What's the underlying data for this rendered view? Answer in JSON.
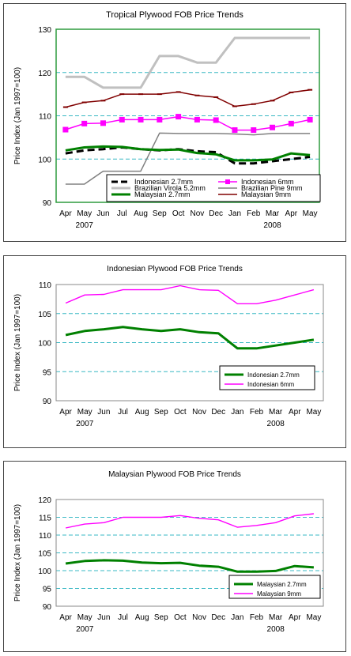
{
  "chart_data": [
    {
      "type": "line",
      "title": "Tropical Plywood FOB Price Trends",
      "ylabel": "Price Index (Jan 1997=100)",
      "categories": [
        "Apr",
        "May",
        "Jun",
        "Jul",
        "Aug",
        "Sep",
        "Oct",
        "Nov",
        "Dec",
        "Jan",
        "Feb",
        "Mar",
        "Apr",
        "May"
      ],
      "year_labels": [
        {
          "label": "2007",
          "index": 1
        },
        {
          "label": "2008",
          "index": 11
        }
      ],
      "ylim": [
        90,
        130
      ],
      "yticks": [
        90,
        100,
        110,
        120,
        130
      ],
      "grid": true,
      "legend_position": "bottom-inside",
      "series": [
        {
          "name": "Indonesian 2.7mm",
          "color": "#000000",
          "style": "dashed",
          "values": [
            101.3,
            102.0,
            102.3,
            102.7,
            102.3,
            102.0,
            102.3,
            101.8,
            101.6,
            99.0,
            99.0,
            99.5,
            100.0,
            100.5
          ]
        },
        {
          "name": "Indonesian 6mm",
          "color": "#ff00ff",
          "style": "square-markers",
          "values": [
            106.8,
            108.2,
            108.3,
            109.1,
            109.1,
            109.1,
            109.8,
            109.1,
            109.0,
            106.7,
            106.7,
            107.3,
            108.2,
            109.1
          ]
        },
        {
          "name": "Brazilian Virola 5.2mm",
          "color": "#c0c0c0",
          "style": "thick",
          "values": [
            119.0,
            119.0,
            116.5,
            116.5,
            116.5,
            123.8,
            123.8,
            122.3,
            122.3,
            128.0,
            128.0,
            128.0,
            128.0,
            128.0
          ]
        },
        {
          "name": "Brazilian Pine 9mm",
          "color": "#808080",
          "style": "solid",
          "values": [
            94.2,
            94.2,
            97.2,
            97.2,
            97.2,
            106.0,
            105.9,
            105.9,
            105.9,
            105.8,
            105.6,
            105.9,
            105.9,
            105.9
          ]
        },
        {
          "name": "Malaysian 2.7mm",
          "color": "#008000",
          "style": "thick",
          "values": [
            102.0,
            102.7,
            102.9,
            102.8,
            102.3,
            102.1,
            102.2,
            101.4,
            101.1,
            99.7,
            99.7,
            99.9,
            101.3,
            100.9
          ]
        },
        {
          "name": "Malaysian 9mm",
          "color": "#800000",
          "style": "dash-markers",
          "values": [
            112.0,
            113.1,
            113.5,
            115.0,
            115.0,
            115.0,
            115.5,
            114.7,
            114.3,
            112.2,
            112.7,
            113.5,
            115.4,
            116.0
          ]
        }
      ]
    },
    {
      "type": "line",
      "title": "Indonesian Plywood FOB Price Trends",
      "ylabel": "Price Index (Jan 1997=100)",
      "categories": [
        "Apr",
        "May",
        "Jun",
        "Jul",
        "Aug",
        "Sep",
        "Oct",
        "Nov",
        "Dec",
        "Jan",
        "Feb",
        "Mar",
        "Apr",
        "May"
      ],
      "year_labels": [
        {
          "label": "2007",
          "index": 1
        },
        {
          "label": "2008",
          "index": 11
        }
      ],
      "ylim": [
        90,
        110
      ],
      "yticks": [
        90,
        95,
        100,
        105,
        110
      ],
      "grid": true,
      "legend_position": "bottom-right",
      "series": [
        {
          "name": "Indonesian 2.7mm",
          "color": "#008000",
          "style": "thick",
          "values": [
            101.3,
            102.0,
            102.3,
            102.7,
            102.3,
            102.0,
            102.3,
            101.8,
            101.6,
            99.0,
            99.0,
            99.5,
            100.0,
            100.5
          ]
        },
        {
          "name": "Indonesian 6mm",
          "color": "#ff00ff",
          "style": "solid",
          "values": [
            106.8,
            108.2,
            108.3,
            109.1,
            109.1,
            109.1,
            109.8,
            109.1,
            109.0,
            106.7,
            106.7,
            107.3,
            108.2,
            109.1
          ]
        }
      ]
    },
    {
      "type": "line",
      "title": "Malaysian Plywood FOB Price Trends",
      "ylabel": "Price Index (Jan 1997=100)",
      "categories": [
        "Apr",
        "May",
        "Jun",
        "Jul",
        "Aug",
        "Sep",
        "Oct",
        "Nov",
        "Dec",
        "Jan",
        "Feb",
        "Mar",
        "Apr",
        "May"
      ],
      "year_labels": [
        {
          "label": "2007",
          "index": 1
        },
        {
          "label": "2008",
          "index": 11
        }
      ],
      "ylim": [
        90,
        120
      ],
      "yticks": [
        90,
        95,
        100,
        105,
        110,
        115,
        120
      ],
      "grid": true,
      "legend_position": "bottom-right",
      "series": [
        {
          "name": "Malaysian 2.7mm",
          "color": "#008000",
          "style": "thick",
          "values": [
            102.0,
            102.7,
            102.9,
            102.8,
            102.3,
            102.1,
            102.2,
            101.4,
            101.1,
            99.7,
            99.7,
            99.9,
            101.3,
            100.9
          ]
        },
        {
          "name": "Malaysian 9mm",
          "color": "#ff00ff",
          "style": "solid",
          "values": [
            112.0,
            113.1,
            113.5,
            115.0,
            115.0,
            115.0,
            115.5,
            114.7,
            114.3,
            112.2,
            112.7,
            113.5,
            115.4,
            116.0
          ]
        }
      ]
    }
  ]
}
